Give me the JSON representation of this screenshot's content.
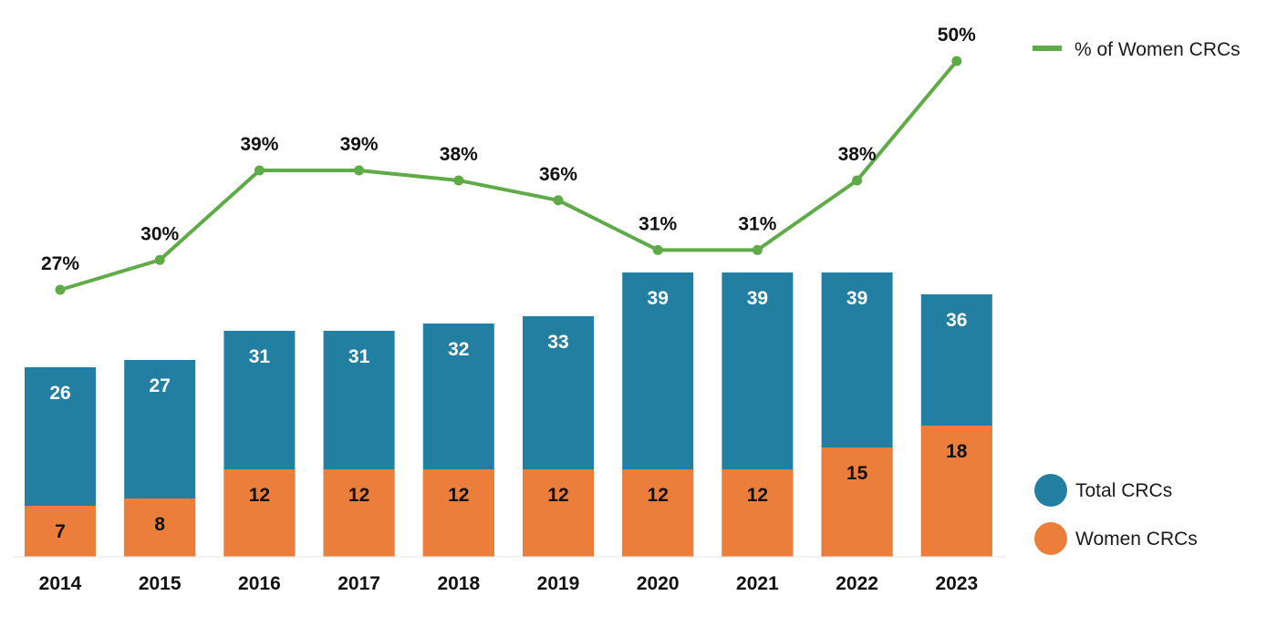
{
  "chart_data": {
    "type": "bar",
    "stacked": true,
    "categories": [
      "2014",
      "2015",
      "2016",
      "2017",
      "2018",
      "2019",
      "2020",
      "2021",
      "2022",
      "2023"
    ],
    "series": [
      {
        "name": "Total CRCs",
        "kind": "bar",
        "values": [
          26,
          27,
          31,
          31,
          32,
          33,
          39,
          39,
          39,
          36
        ],
        "color": "#227FA1"
      },
      {
        "name": "Women CRCs",
        "kind": "bar",
        "values": [
          7,
          8,
          12,
          12,
          12,
          12,
          12,
          12,
          15,
          18
        ],
        "color": "#EB7E3A"
      },
      {
        "name": "% of Women CRCs",
        "kind": "line",
        "values": [
          27,
          30,
          39,
          39,
          38,
          36,
          31,
          31,
          38,
          50
        ],
        "labels": [
          "27%",
          "30%",
          "39%",
          "39%",
          "38%",
          "36%",
          "31%",
          "31%",
          "38%",
          "50%"
        ],
        "color": "#5FAB47"
      }
    ],
    "ylim_bars": [
      0,
      39
    ],
    "ylim_line": [
      27,
      50
    ],
    "grid": false,
    "legend": [
      "top-right",
      "bottom-right"
    ]
  }
}
